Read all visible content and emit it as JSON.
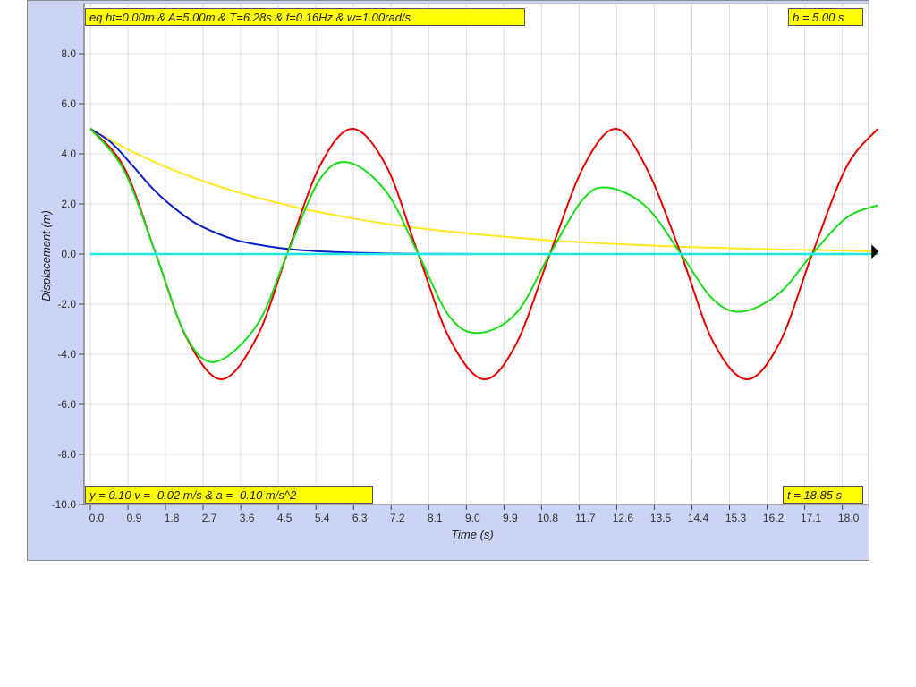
{
  "readouts": {
    "equation": "eq ht=0.00m & A=5.00m & T=6.28s & f=0.16Hz & w=1.00rad/s",
    "damping": "b = 5.00 s",
    "state": "y = 0.10 v = -0.02 m/s & a = -0.10 m/s^2",
    "time": "t = 18.85 s"
  },
  "colors": {
    "panel_bg": "#ccd4f6",
    "plot_bg": "#ffffff",
    "grid": "#dcdcdc",
    "readout_bg": "#ffff00",
    "marker": "#000000"
  },
  "chart_data": {
    "type": "line",
    "xlabel": "Time (s)",
    "ylabel": "Displacement (m)",
    "xlim": [
      -0.2,
      18.85
    ],
    "ylim": [
      -10.0,
      10.0
    ],
    "x_ticks": [
      "0.0",
      "0.9",
      "1.8",
      "2.7",
      "3.6",
      "4.5",
      "5.4",
      "6.3",
      "7.2",
      "8.1",
      "9.0",
      "9.9",
      "10.8",
      "11.7",
      "12.6",
      "13.5",
      "14.4",
      "15.3",
      "16.2",
      "17.1",
      "18.0"
    ],
    "y_ticks": [
      "8.0",
      "6.0",
      "4.0",
      "2.0",
      "0.0",
      "-2.0",
      "-4.0",
      "-6.0",
      "-8.0",
      "-10.0"
    ],
    "grid": true,
    "series": [
      {
        "color": "#ffe81a",
        "x": [
          0,
          1,
          2,
          3,
          4,
          5,
          6,
          7,
          8,
          9,
          10,
          11,
          12,
          13,
          14,
          15,
          16,
          17,
          18,
          18.85
        ],
        "y": [
          5.0,
          4.09,
          3.35,
          2.74,
          2.25,
          1.84,
          1.51,
          1.23,
          1.01,
          0.83,
          0.68,
          0.55,
          0.45,
          0.37,
          0.3,
          0.25,
          0.2,
          0.17,
          0.14,
          0.1
        ]
      },
      {
        "color": "#0a1fcc",
        "x": [
          0,
          0.5,
          1,
          1.5,
          2,
          2.5,
          3,
          3.5,
          4,
          4.5,
          5,
          6,
          7,
          8,
          10,
          12,
          14,
          16,
          18.85
        ],
        "y": [
          5.0,
          4.45,
          3.55,
          2.6,
          1.85,
          1.25,
          0.85,
          0.55,
          0.38,
          0.25,
          0.16,
          0.07,
          0.03,
          0.01,
          0.0,
          0.0,
          0.0,
          0.0,
          0.0
        ]
      },
      {
        "color": "#e60000",
        "x": [
          0,
          0.8,
          1.57,
          2.3,
          3.14,
          4.0,
          4.71,
          5.5,
          6.28,
          7.1,
          7.85,
          8.6,
          9.42,
          10.2,
          11.0,
          11.8,
          12.57,
          13.3,
          14.14,
          14.9,
          15.71,
          16.5,
          17.28,
          18.1,
          18.85
        ],
        "y": [
          5.0,
          3.48,
          0.0,
          -3.33,
          -5.0,
          -3.27,
          0.0,
          3.54,
          5.0,
          3.46,
          0.0,
          -3.38,
          -5.0,
          -3.57,
          0.0,
          3.47,
          5.0,
          3.48,
          0.0,
          -3.47,
          -5.0,
          -3.54,
          0.0,
          3.48,
          5.0
        ]
      },
      {
        "color": "#19dd19",
        "x": [
          0,
          0.8,
          1.57,
          2.3,
          3.0,
          4.0,
          4.71,
          5.5,
          6.2,
          7.1,
          7.85,
          8.6,
          9.3,
          10.2,
          11.0,
          11.8,
          12.4,
          13.3,
          14.14,
          14.9,
          15.6,
          16.5,
          17.28,
          18.1,
          18.85
        ],
        "y": [
          5.0,
          3.35,
          0.0,
          -3.3,
          -4.3,
          -2.8,
          0.0,
          3.0,
          3.65,
          2.45,
          0.0,
          -2.5,
          -3.15,
          -2.35,
          0.0,
          2.2,
          2.65,
          1.9,
          0.0,
          -1.8,
          -2.3,
          -1.55,
          0.0,
          1.45,
          1.95
        ]
      },
      {
        "color": "#1ee6e6",
        "x": [
          0,
          18.85
        ],
        "y": [
          0,
          0
        ]
      }
    ],
    "marker": {
      "x": 18.85,
      "y": 0.1
    }
  }
}
